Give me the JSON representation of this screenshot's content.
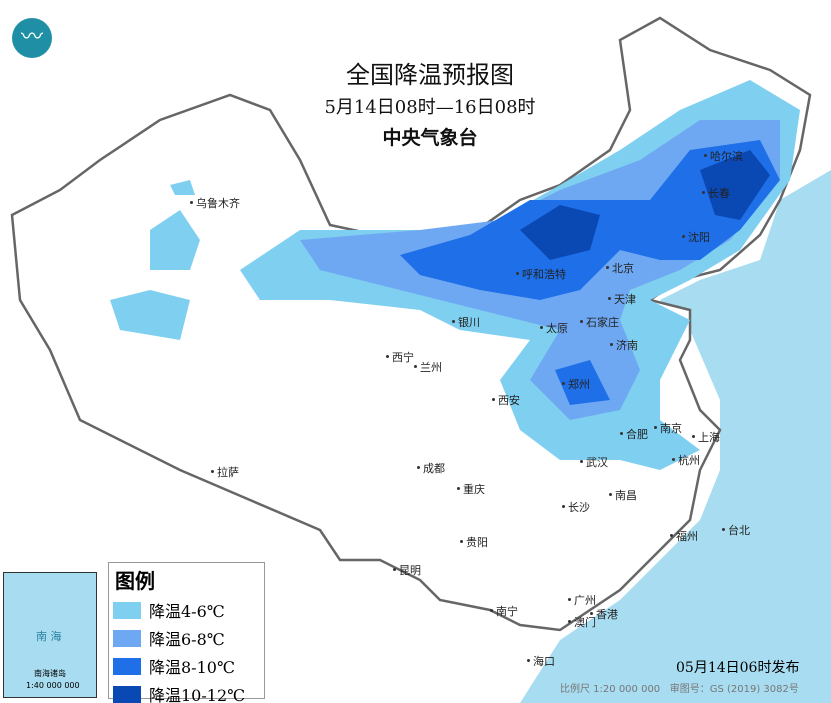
{
  "title": "全国降温预报图",
  "period": "5月14日08时—16日08时",
  "issuer": "中央气象台",
  "legend": {
    "title": "图例",
    "items": [
      {
        "label": "降温4-6℃",
        "color": "#7fcff0"
      },
      {
        "label": "降温6-8℃",
        "color": "#6fa8f2"
      },
      {
        "label": "降温8-10℃",
        "color": "#1e6fe8"
      },
      {
        "label": "降温10-12℃",
        "color": "#0a48b4"
      }
    ]
  },
  "publish_time": "05月14日06时发布",
  "scale": "比例尺 1:20 000 000",
  "map_number": "审图号：GS (2019) 3082号",
  "inset": {
    "label": "南海诸岛",
    "scale": "1:40 000 000",
    "sea": "南 海"
  },
  "cities": [
    "乌鲁木齐",
    "呼和浩特",
    "北京",
    "天津",
    "哈尔滨",
    "长春",
    "沈阳",
    "银川",
    "太原",
    "石家庄",
    "济南",
    "西宁",
    "兰州",
    "西安",
    "郑州",
    "合肥",
    "南京",
    "上海",
    "杭州",
    "武汉",
    "成都",
    "重庆",
    "拉萨",
    "长沙",
    "南昌",
    "贵阳",
    "福州",
    "台北",
    "昆明",
    "南宁",
    "广州",
    "香港",
    "澳门",
    "海口"
  ],
  "colors": {
    "sea": "#a8dcf0",
    "land": "#ffffff",
    "border": "#666666"
  }
}
